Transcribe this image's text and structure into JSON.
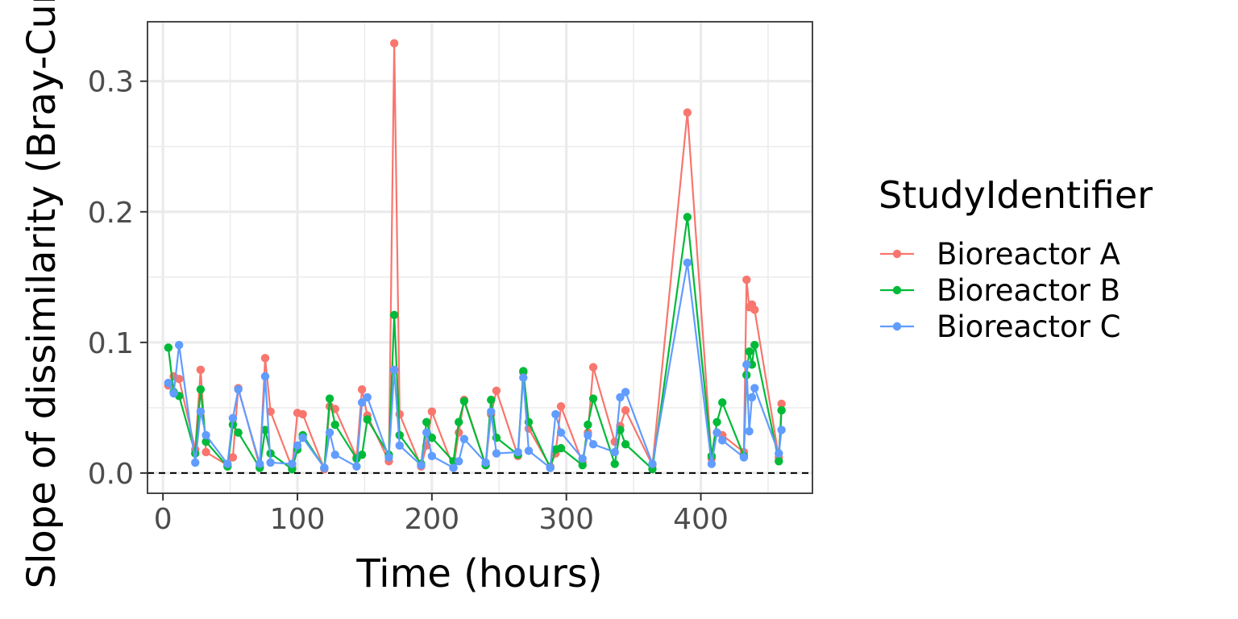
{
  "chart_data": {
    "type": "line",
    "title": "",
    "xlabel": "Time (hours)",
    "ylabel": "Slope of dissimilarity (Bray-Curtis)",
    "xlim": [
      -11.5,
      483
    ],
    "ylim": [
      -0.0155,
      0.3455
    ],
    "x_ticks": [
      0,
      100,
      200,
      300,
      400
    ],
    "x_tick_labels": [
      "0",
      "100",
      "200",
      "300",
      "400"
    ],
    "y_ticks": [
      0.0,
      0.1,
      0.2,
      0.3
    ],
    "y_tick_labels": [
      "0.0",
      "0.1",
      "0.2",
      "0.3"
    ],
    "reference_line": {
      "y": 0,
      "style": "dashed"
    },
    "grid": true,
    "legend": {
      "title": "StudyIdentifier",
      "position": "right"
    },
    "series": [
      {
        "name": "Bioreactor A",
        "color": "#F8766D",
        "x": [
          4,
          8,
          12,
          24,
          28,
          32,
          48,
          52,
          56,
          72,
          76,
          80,
          96,
          100,
          104,
          120,
          124,
          128,
          144,
          148,
          152,
          168,
          172,
          176,
          192,
          196,
          200,
          216,
          220,
          224,
          240,
          244,
          248,
          264,
          268,
          272,
          288,
          292,
          296,
          312,
          316,
          320,
          336,
          340,
          344,
          364,
          390,
          408,
          412,
          416,
          432,
          434,
          436,
          438,
          440,
          458,
          460
        ],
        "values": [
          0.067,
          0.074,
          0.072,
          0.018,
          0.079,
          0.016,
          0.006,
          0.012,
          0.065,
          0.005,
          0.088,
          0.047,
          0.004,
          0.046,
          0.045,
          0.003,
          0.051,
          0.049,
          0.012,
          0.064,
          0.044,
          0.009,
          0.329,
          0.045,
          0.005,
          0.021,
          0.047,
          0.004,
          0.031,
          0.056,
          0.006,
          0.045,
          0.063,
          0.013,
          0.077,
          0.034,
          0.005,
          0.015,
          0.051,
          0.008,
          0.031,
          0.081,
          0.024,
          0.036,
          0.048,
          0.006,
          0.276,
          0.011,
          0.031,
          0.029,
          0.016,
          0.148,
          0.127,
          0.129,
          0.125,
          0.012,
          0.053
        ]
      },
      {
        "name": "Bioreactor B",
        "color": "#00BA38",
        "x": [
          4,
          8,
          12,
          24,
          28,
          32,
          48,
          52,
          56,
          72,
          76,
          80,
          96,
          100,
          104,
          120,
          124,
          128,
          144,
          148,
          152,
          168,
          172,
          176,
          192,
          196,
          200,
          216,
          220,
          224,
          240,
          244,
          248,
          264,
          268,
          272,
          288,
          292,
          296,
          312,
          316,
          320,
          336,
          340,
          344,
          364,
          390,
          408,
          412,
          416,
          432,
          434,
          436,
          438,
          440,
          458,
          460
        ],
        "values": [
          0.096,
          0.062,
          0.059,
          0.015,
          0.064,
          0.024,
          0.005,
          0.037,
          0.031,
          0.004,
          0.033,
          0.015,
          0.003,
          0.018,
          0.029,
          0.004,
          0.057,
          0.037,
          0.011,
          0.014,
          0.041,
          0.014,
          0.121,
          0.029,
          0.007,
          0.039,
          0.027,
          0.009,
          0.039,
          0.055,
          0.006,
          0.056,
          0.027,
          0.014,
          0.078,
          0.039,
          0.004,
          0.018,
          0.019,
          0.006,
          0.037,
          0.057,
          0.007,
          0.033,
          0.022,
          0.003,
          0.196,
          0.013,
          0.039,
          0.054,
          0.013,
          0.075,
          0.093,
          0.083,
          0.098,
          0.009,
          0.048
        ]
      },
      {
        "name": "Bioreactor C",
        "color": "#619CFF",
        "x": [
          4,
          8,
          12,
          24,
          28,
          32,
          48,
          52,
          56,
          72,
          76,
          80,
          96,
          100,
          104,
          120,
          124,
          128,
          144,
          148,
          152,
          168,
          172,
          176,
          192,
          196,
          200,
          216,
          220,
          224,
          240,
          244,
          248,
          264,
          268,
          272,
          288,
          292,
          296,
          312,
          316,
          320,
          336,
          340,
          344,
          364,
          390,
          408,
          412,
          416,
          432,
          434,
          436,
          438,
          440,
          458,
          460
        ],
        "values": [
          0.069,
          0.061,
          0.098,
          0.008,
          0.047,
          0.029,
          0.007,
          0.042,
          0.064,
          0.007,
          0.074,
          0.008,
          0.007,
          0.021,
          0.027,
          0.004,
          0.031,
          0.014,
          0.005,
          0.054,
          0.058,
          0.012,
          0.079,
          0.021,
          0.006,
          0.031,
          0.013,
          0.004,
          0.009,
          0.026,
          0.008,
          0.047,
          0.015,
          0.016,
          0.073,
          0.017,
          0.004,
          0.045,
          0.031,
          0.011,
          0.029,
          0.022,
          0.016,
          0.058,
          0.062,
          0.007,
          0.161,
          0.007,
          0.031,
          0.025,
          0.012,
          0.083,
          0.032,
          0.058,
          0.065,
          0.015,
          0.033
        ]
      }
    ]
  }
}
